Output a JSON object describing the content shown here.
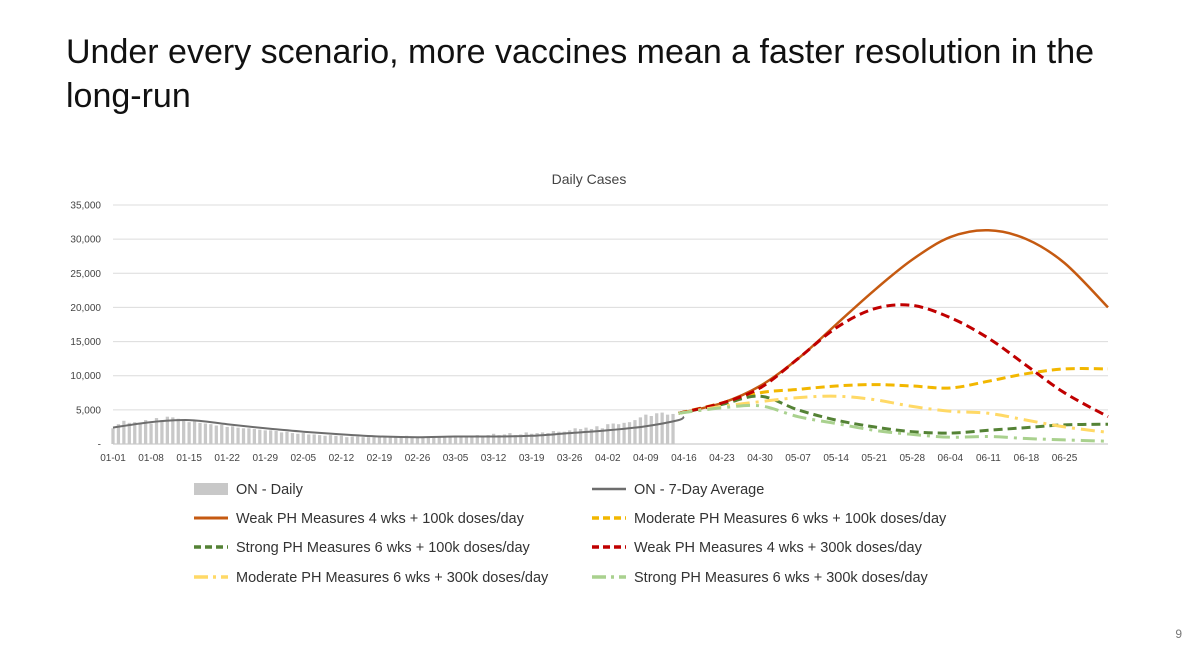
{
  "slide": {
    "title": "Under every scenario, more vaccines mean a faster resolution in the long-run",
    "page_number": "9"
  },
  "chart_data": {
    "type": "line",
    "title": "Daily Cases",
    "xlabel": "",
    "ylabel": "",
    "ylim": [
      0,
      35000
    ],
    "yticks": [
      0,
      5000,
      10000,
      15000,
      20000,
      25000,
      30000,
      35000
    ],
    "ytick_labels": [
      "-",
      "5,000",
      "10,000",
      "15,000",
      "20,000",
      "25,000",
      "30,000",
      "35,000"
    ],
    "x_ticks": [
      "01-01",
      "01-08",
      "01-15",
      "01-22",
      "01-29",
      "02-05",
      "02-12",
      "02-19",
      "02-26",
      "03-05",
      "03-12",
      "03-19",
      "03-26",
      "04-02",
      "04-09",
      "04-16",
      "04-23",
      "04-30",
      "05-07",
      "05-14",
      "05-21",
      "05-28",
      "06-04",
      "06-11",
      "06-18",
      "06-25"
    ],
    "x_day_range": [
      0,
      183
    ],
    "x_units": "days since 01-01",
    "grid": true,
    "legend_position": "bottom",
    "daily_bars": {
      "name": "ON - Daily",
      "color": "#c8c8c8",
      "start_day": 0,
      "values": [
        2300,
        2900,
        3400,
        3100,
        3200,
        3100,
        3500,
        3000,
        3800,
        3500,
        4000,
        3900,
        3700,
        3400,
        3200,
        3500,
        3100,
        3000,
        2900,
        2700,
        2800,
        2500,
        2600,
        2400,
        2300,
        2300,
        2200,
        2100,
        2000,
        2000,
        1900,
        1700,
        1800,
        1600,
        1500,
        1600,
        1400,
        1400,
        1300,
        1200,
        1300,
        1200,
        1200,
        1000,
        1100,
        1100,
        1000,
        1000,
        1000,
        1000,
        1000,
        1100,
        1000,
        1100,
        1200,
        1100,
        1000,
        1100,
        1100,
        1100,
        1100,
        1000,
        1100,
        1000,
        1200,
        1100,
        1100,
        1300,
        1200,
        1300,
        1500,
        1300,
        1400,
        1600,
        1300,
        1400,
        1700,
        1500,
        1600,
        1700,
        1600,
        1900,
        1800,
        1800,
        2000,
        2300,
        2200,
        2400,
        2200,
        2600,
        2300,
        2900,
        3000,
        2900,
        3100,
        3200,
        3500,
        3900,
        4300,
        4100,
        4500,
        4600,
        4300,
        4400
      ]
    },
    "series": [
      {
        "name": "ON - 7-Day Average",
        "color": "#6d6d6d",
        "dash": "solid",
        "width": 2,
        "points": [
          [
            0,
            2400
          ],
          [
            7,
            3200
          ],
          [
            14,
            3500
          ],
          [
            21,
            2900
          ],
          [
            28,
            2300
          ],
          [
            35,
            1800
          ],
          [
            42,
            1400
          ],
          [
            49,
            1100
          ],
          [
            56,
            1000
          ],
          [
            63,
            1100
          ],
          [
            70,
            1100
          ],
          [
            77,
            1200
          ],
          [
            84,
            1600
          ],
          [
            91,
            2000
          ],
          [
            98,
            2600
          ],
          [
            104,
            3500
          ],
          [
            105,
            4000
          ]
        ]
      },
      {
        "name": "Weak PH Measures 4 wks + 100k doses/day",
        "color": "#c55a11",
        "dash": "solid",
        "width": 2.5,
        "points": [
          [
            104,
            4500
          ],
          [
            112,
            6000
          ],
          [
            119,
            8500
          ],
          [
            126,
            12500
          ],
          [
            133,
            17500
          ],
          [
            140,
            22500
          ],
          [
            147,
            27000
          ],
          [
            154,
            30300
          ],
          [
            161,
            31300
          ],
          [
            168,
            30000
          ],
          [
            175,
            26500
          ],
          [
            183,
            20000
          ]
        ]
      },
      {
        "name": "Moderate PH Measures 6 wks + 100k doses/day",
        "color": "#f2b700",
        "dash": "dashed",
        "width": 3,
        "points": [
          [
            104,
            4500
          ],
          [
            112,
            6000
          ],
          [
            119,
            7500
          ],
          [
            126,
            8000
          ],
          [
            133,
            8500
          ],
          [
            140,
            8700
          ],
          [
            147,
            8500
          ],
          [
            154,
            8200
          ],
          [
            161,
            9200
          ],
          [
            168,
            10300
          ],
          [
            175,
            11000
          ],
          [
            183,
            11000
          ]
        ]
      },
      {
        "name": "Strong PH Measures 6 wks + 100k doses/day",
        "color": "#548235",
        "dash": "dashed",
        "width": 3,
        "points": [
          [
            104,
            4500
          ],
          [
            112,
            5800
          ],
          [
            119,
            7000
          ],
          [
            126,
            5000
          ],
          [
            133,
            3500
          ],
          [
            140,
            2500
          ],
          [
            147,
            1800
          ],
          [
            154,
            1600
          ],
          [
            161,
            2000
          ],
          [
            168,
            2400
          ],
          [
            175,
            2800
          ],
          [
            183,
            2900
          ]
        ]
      },
      {
        "name": "Weak PH Measures 4 wks + 300k doses/day",
        "color": "#c00000",
        "dash": "dashed",
        "width": 3,
        "points": [
          [
            104,
            4500
          ],
          [
            112,
            6000
          ],
          [
            119,
            8200
          ],
          [
            126,
            12500
          ],
          [
            133,
            17000
          ],
          [
            140,
            19800
          ],
          [
            147,
            20300
          ],
          [
            154,
            18500
          ],
          [
            161,
            15500
          ],
          [
            168,
            11500
          ],
          [
            175,
            7500
          ],
          [
            183,
            4000
          ]
        ]
      },
      {
        "name": "Moderate PH Measures 6 wks + 300k doses/day",
        "color": "#ffd966",
        "dash": "dashdot",
        "width": 3,
        "points": [
          [
            104,
            4500
          ],
          [
            112,
            5500
          ],
          [
            119,
            6200
          ],
          [
            126,
            6800
          ],
          [
            133,
            7000
          ],
          [
            140,
            6500
          ],
          [
            147,
            5500
          ],
          [
            154,
            4800
          ],
          [
            161,
            4500
          ],
          [
            168,
            3500
          ],
          [
            175,
            2500
          ],
          [
            183,
            1700
          ]
        ]
      },
      {
        "name": "Strong PH Measures 6 wks + 300k doses/day",
        "color": "#a9d18e",
        "dash": "dashdot",
        "width": 3,
        "points": [
          [
            104,
            4500
          ],
          [
            112,
            5300
          ],
          [
            119,
            5600
          ],
          [
            126,
            4000
          ],
          [
            133,
            3000
          ],
          [
            140,
            2000
          ],
          [
            147,
            1400
          ],
          [
            154,
            1000
          ],
          [
            161,
            1100
          ],
          [
            168,
            800
          ],
          [
            175,
            600
          ],
          [
            183,
            400
          ]
        ]
      }
    ],
    "legend_order": [
      "ON - Daily",
      "ON - 7-Day Average",
      "Weak PH Measures 4 wks + 100k doses/day",
      "Moderate PH Measures 6 wks + 100k doses/day",
      "Strong PH Measures 6 wks + 100k doses/day",
      "Weak PH Measures 4 wks + 300k doses/day",
      "Moderate PH Measures 6 wks + 300k doses/day",
      "Strong PH Measures 6 wks + 300k doses/day"
    ]
  }
}
